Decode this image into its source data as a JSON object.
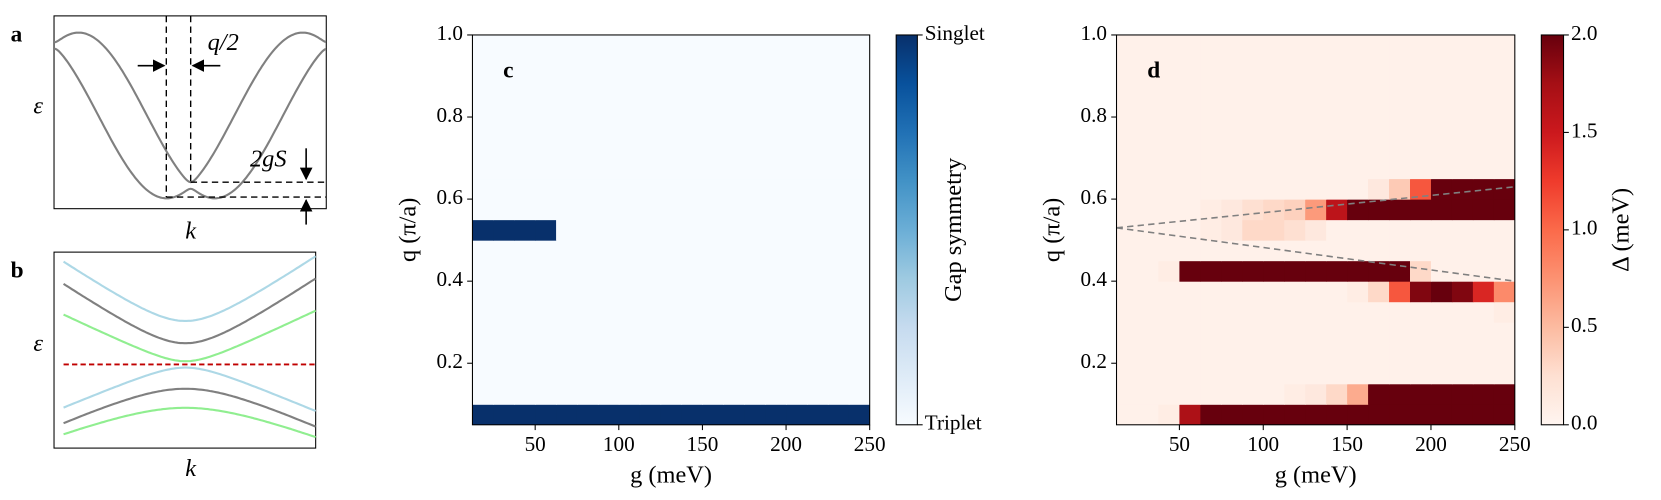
{
  "schematics": [
    {
      "label": "a",
      "ylabel": "ε",
      "xlabel": "k",
      "annotations": [
        "q/2",
        "2gS"
      ]
    },
    {
      "label": "b",
      "ylabel": "ε",
      "xlabel": "k"
    }
  ],
  "chart_data": [
    {
      "type": "heatmap",
      "label": "c",
      "xlabel": "g (meV)",
      "ylabel": "q (π/a)",
      "xlim": [
        12.5,
        250
      ],
      "ylim": [
        0.05,
        1.0
      ],
      "xticks": [
        50,
        100,
        150,
        200,
        250
      ],
      "yticks": [
        {
          "value": 0.2,
          "label": "0.2"
        },
        {
          "value": 0.4,
          "label": "0.4"
        },
        {
          "value": 0.6,
          "label": "0.6"
        },
        {
          "value": 0.8,
          "label": "0.8"
        },
        {
          "value": 1.0,
          "label": "1.0"
        }
      ],
      "xbins": [
        12.5,
        25,
        37.5,
        50,
        62.5,
        75,
        87.5,
        100,
        112.5,
        125,
        137.5,
        150,
        162.5,
        175,
        187.5,
        200,
        212.5,
        225,
        237.5,
        250
      ],
      "ybins": [
        0.05,
        0.1,
        0.15,
        0.2,
        0.25,
        0.3,
        0.35,
        0.4,
        0.45,
        0.5,
        0.55,
        0.6,
        0.65,
        0.7,
        0.75,
        0.8,
        0.85,
        0.9,
        0.95,
        1.0
      ],
      "values": [
        [
          1,
          1,
          1,
          1,
          1,
          1,
          1,
          1,
          1,
          1,
          1,
          1,
          1,
          1,
          1,
          1,
          1,
          1,
          1
        ],
        [
          0,
          0,
          0,
          0,
          0,
          0,
          0,
          0,
          0,
          0,
          0,
          0,
          0,
          0,
          0,
          0,
          0,
          0,
          0
        ],
        [
          0,
          0,
          0,
          0,
          0,
          0,
          0,
          0,
          0,
          0,
          0,
          0,
          0,
          0,
          0,
          0,
          0,
          0,
          0
        ],
        [
          0,
          0,
          0,
          0,
          0,
          0,
          0,
          0,
          0,
          0,
          0,
          0,
          0,
          0,
          0,
          0,
          0,
          0,
          0
        ],
        [
          0,
          0,
          0,
          0,
          0,
          0,
          0,
          0,
          0,
          0,
          0,
          0,
          0,
          0,
          0,
          0,
          0,
          0,
          0
        ],
        [
          0,
          0,
          0,
          0,
          0,
          0,
          0,
          0,
          0,
          0,
          0,
          0,
          0,
          0,
          0,
          0,
          0,
          0,
          0
        ],
        [
          0,
          0,
          0,
          0,
          0,
          0,
          0,
          0,
          0,
          0,
          0,
          0,
          0,
          0,
          0,
          0,
          0,
          0,
          0
        ],
        [
          0,
          0,
          0,
          0,
          0,
          0,
          0,
          0,
          0,
          0,
          0,
          0,
          0,
          0,
          0,
          0,
          0,
          0,
          0
        ],
        [
          0,
          0,
          0,
          0,
          0,
          0,
          0,
          0,
          0,
          0,
          0,
          0,
          0,
          0,
          0,
          0,
          0,
          0,
          0
        ],
        [
          1,
          1,
          1,
          1,
          0,
          0,
          0,
          0,
          0,
          0,
          0,
          0,
          0,
          0,
          0,
          0,
          0,
          0,
          0
        ],
        [
          0,
          0,
          0,
          0,
          0,
          0,
          0,
          0,
          0,
          0,
          0,
          0,
          0,
          0,
          0,
          0,
          0,
          0,
          0
        ],
        [
          0,
          0,
          0,
          0,
          0,
          0,
          0,
          0,
          0,
          0,
          0,
          0,
          0,
          0,
          0,
          0,
          0,
          0,
          0
        ],
        [
          0,
          0,
          0,
          0,
          0,
          0,
          0,
          0,
          0,
          0,
          0,
          0,
          0,
          0,
          0,
          0,
          0,
          0,
          0
        ],
        [
          0,
          0,
          0,
          0,
          0,
          0,
          0,
          0,
          0,
          0,
          0,
          0,
          0,
          0,
          0,
          0,
          0,
          0,
          0
        ],
        [
          0,
          0,
          0,
          0,
          0,
          0,
          0,
          0,
          0,
          0,
          0,
          0,
          0,
          0,
          0,
          0,
          0,
          0,
          0
        ],
        [
          0,
          0,
          0,
          0,
          0,
          0,
          0,
          0,
          0,
          0,
          0,
          0,
          0,
          0,
          0,
          0,
          0,
          0,
          0
        ],
        [
          0,
          0,
          0,
          0,
          0,
          0,
          0,
          0,
          0,
          0,
          0,
          0,
          0,
          0,
          0,
          0,
          0,
          0,
          0
        ],
        [
          0,
          0,
          0,
          0,
          0,
          0,
          0,
          0,
          0,
          0,
          0,
          0,
          0,
          0,
          0,
          0,
          0,
          0,
          0
        ],
        [
          0,
          0,
          0,
          0,
          0,
          0,
          0,
          0,
          0,
          0,
          0,
          0,
          0,
          0,
          0,
          0,
          0,
          0,
          0
        ]
      ],
      "colors": [
        "#f7fbff",
        "#deebf7",
        "#c6dbef",
        "#9ecae1",
        "#6baed6",
        "#4292c6",
        "#2171b5",
        "#08519c",
        "#08306b"
      ],
      "clim": [
        0,
        1
      ],
      "cticks": [
        {
          "value": 1,
          "label": "Singlet"
        },
        {
          "value": 0,
          "label": "Triplet"
        }
      ],
      "clabel": "Gap symmetry"
    },
    {
      "type": "heatmap",
      "label": "d",
      "xlabel": "g (meV)",
      "ylabel": "q (π/a)",
      "xlim": [
        12.5,
        250
      ],
      "ylim": [
        0.05,
        1.0
      ],
      "xticks": [
        50,
        100,
        150,
        200,
        250
      ],
      "yticks": [
        {
          "value": 0.2,
          "label": "0.2"
        },
        {
          "value": 0.4,
          "label": "0.4"
        },
        {
          "value": 0.6,
          "label": "0.6"
        },
        {
          "value": 0.8,
          "label": "0.8"
        },
        {
          "value": 1.0,
          "label": "1.0"
        }
      ],
      "xbins": [
        12.5,
        25,
        37.5,
        50,
        62.5,
        75,
        87.5,
        100,
        112.5,
        125,
        137.5,
        150,
        162.5,
        175,
        187.5,
        200,
        212.5,
        225,
        237.5,
        250
      ],
      "ybins": [
        0.05,
        0.1,
        0.15,
        0.2,
        0.25,
        0.3,
        0.35,
        0.4,
        0.45,
        0.5,
        0.55,
        0.6,
        0.65,
        0.7,
        0.75,
        0.8,
        0.85,
        0.9,
        0.95,
        1.0
      ],
      "values": [
        [
          0.05,
          0.05,
          0.1,
          1.7,
          2.0,
          2.0,
          2.0,
          2.0,
          2.0,
          2.0,
          2.0,
          2.0,
          2.0,
          2.0,
          2.0,
          2.0,
          2.0,
          2.0,
          2.0
        ],
        [
          0.05,
          0.05,
          0.05,
          0.05,
          0.05,
          0.05,
          0.05,
          0.05,
          0.1,
          0.15,
          0.3,
          0.6,
          2.0,
          2.0,
          2.0,
          2.0,
          2.0,
          2.0,
          2.0
        ],
        [
          0.05,
          0.05,
          0.05,
          0.05,
          0.05,
          0.05,
          0.05,
          0.05,
          0.05,
          0.05,
          0.05,
          0.05,
          0.05,
          0.05,
          0.05,
          0.05,
          0.05,
          0.05,
          0.05
        ],
        [
          0.05,
          0.05,
          0.05,
          0.05,
          0.05,
          0.05,
          0.05,
          0.05,
          0.05,
          0.05,
          0.05,
          0.05,
          0.05,
          0.05,
          0.05,
          0.05,
          0.05,
          0.05,
          0.05
        ],
        [
          0.05,
          0.05,
          0.05,
          0.05,
          0.05,
          0.05,
          0.05,
          0.05,
          0.05,
          0.05,
          0.05,
          0.05,
          0.05,
          0.05,
          0.05,
          0.05,
          0.05,
          0.05,
          0.05
        ],
        [
          0.05,
          0.05,
          0.05,
          0.05,
          0.05,
          0.05,
          0.05,
          0.05,
          0.05,
          0.05,
          0.05,
          0.05,
          0.05,
          0.05,
          0.05,
          0.05,
          0.05,
          0.05,
          0.1
        ],
        [
          0.05,
          0.05,
          0.05,
          0.05,
          0.05,
          0.05,
          0.05,
          0.05,
          0.05,
          0.05,
          0.05,
          0.1,
          0.3,
          1.1,
          1.9,
          2.0,
          1.9,
          1.4,
          0.8
        ],
        [
          0.05,
          0.05,
          0.1,
          2.0,
          2.0,
          2.0,
          2.0,
          2.0,
          2.0,
          2.0,
          2.0,
          2.0,
          2.0,
          2.0,
          0.3,
          0.05,
          0.05,
          0.05,
          0.05
        ],
        [
          0.05,
          0.05,
          0.05,
          0.05,
          0.05,
          0.05,
          0.05,
          0.05,
          0.05,
          0.05,
          0.05,
          0.05,
          0.05,
          0.05,
          0.05,
          0.05,
          0.05,
          0.05,
          0.05
        ],
        [
          0.05,
          0.05,
          0.05,
          0.05,
          0.1,
          0.15,
          0.3,
          0.3,
          0.25,
          0.15,
          0.05,
          0.05,
          0.05,
          0.05,
          0.05,
          0.05,
          0.05,
          0.05,
          0.05
        ],
        [
          0.05,
          0.05,
          0.05,
          0.05,
          0.1,
          0.15,
          0.25,
          0.3,
          0.35,
          0.7,
          1.6,
          2.0,
          2.0,
          2.0,
          2.0,
          2.0,
          2.0,
          2.0,
          2.0
        ],
        [
          0.05,
          0.05,
          0.05,
          0.05,
          0.05,
          0.05,
          0.05,
          0.05,
          0.05,
          0.05,
          0.05,
          0.05,
          0.15,
          0.4,
          1.1,
          2.0,
          2.0,
          2.0,
          2.0
        ],
        [
          0.05,
          0.05,
          0.05,
          0.05,
          0.05,
          0.05,
          0.05,
          0.05,
          0.05,
          0.05,
          0.05,
          0.05,
          0.05,
          0.05,
          0.05,
          0.05,
          0.05,
          0.05,
          0.05
        ],
        [
          0.05,
          0.05,
          0.05,
          0.05,
          0.05,
          0.05,
          0.05,
          0.05,
          0.05,
          0.05,
          0.05,
          0.05,
          0.05,
          0.05,
          0.05,
          0.05,
          0.05,
          0.05,
          0.05
        ],
        [
          0.05,
          0.05,
          0.05,
          0.05,
          0.05,
          0.05,
          0.05,
          0.05,
          0.05,
          0.05,
          0.05,
          0.05,
          0.05,
          0.05,
          0.05,
          0.05,
          0.05,
          0.05,
          0.05
        ],
        [
          0.05,
          0.05,
          0.05,
          0.05,
          0.05,
          0.05,
          0.05,
          0.05,
          0.05,
          0.05,
          0.05,
          0.05,
          0.05,
          0.05,
          0.05,
          0.05,
          0.05,
          0.05,
          0.05
        ],
        [
          0.05,
          0.05,
          0.05,
          0.05,
          0.05,
          0.05,
          0.05,
          0.05,
          0.05,
          0.05,
          0.05,
          0.05,
          0.05,
          0.05,
          0.05,
          0.05,
          0.05,
          0.05,
          0.05
        ],
        [
          0.05,
          0.05,
          0.05,
          0.05,
          0.05,
          0.05,
          0.05,
          0.05,
          0.05,
          0.05,
          0.05,
          0.05,
          0.05,
          0.05,
          0.05,
          0.05,
          0.05,
          0.05,
          0.05
        ],
        [
          0.05,
          0.05,
          0.05,
          0.05,
          0.05,
          0.05,
          0.05,
          0.05,
          0.05,
          0.05,
          0.05,
          0.05,
          0.05,
          0.05,
          0.05,
          0.05,
          0.05,
          0.05,
          0.05
        ]
      ],
      "lines": [
        {
          "x": [
            12.5,
            250
          ],
          "y": [
            0.53,
            0.63
          ]
        },
        {
          "x": [
            12.5,
            250
          ],
          "y": [
            0.53,
            0.4
          ]
        }
      ],
      "colors": [
        "#fff5f0",
        "#fee0d2",
        "#fcbba1",
        "#fc9272",
        "#fb6a4a",
        "#ef3b2c",
        "#cb181d",
        "#a50f15",
        "#67000d"
      ],
      "clim": [
        0,
        2
      ],
      "cticks": [
        {
          "value": 0,
          "label": "0.0"
        },
        {
          "value": 0.5,
          "label": "0.5"
        },
        {
          "value": 1,
          "label": "1.0"
        },
        {
          "value": 1.5,
          "label": "1.5"
        },
        {
          "value": 2,
          "label": "2.0"
        }
      ],
      "clabel": "Δ (meV)"
    }
  ]
}
